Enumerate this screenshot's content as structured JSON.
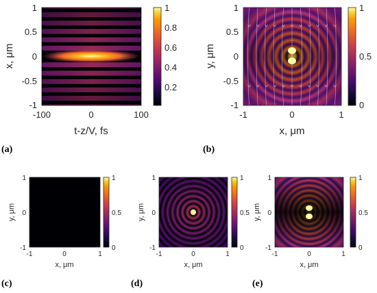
{
  "panels": {
    "a": {
      "label": "(a)",
      "x_label": "t-z/V, fs",
      "y_label": "x, μm",
      "x_ticks": [
        "-100",
        "0",
        "100"
      ],
      "y_ticks": [
        "1",
        "0.5",
        "0",
        "-0.5",
        "-1"
      ],
      "cbar_ticks": [
        "1",
        "0.8",
        "0.6",
        "0.4",
        "0.2"
      ]
    },
    "b": {
      "label": "(b)",
      "x_label": "x, μm",
      "y_label": "y, μm",
      "x_ticks": [
        "-1",
        "0",
        "1"
      ],
      "y_ticks": [
        "1",
        "0.5",
        "0",
        "-0.5",
        "-1"
      ],
      "cbar_ticks": [
        "1",
        "0.5",
        "0"
      ]
    },
    "c": {
      "label": "(c)",
      "x_label": "x, μm",
      "y_label": "y, μm",
      "x_ticks": [
        "-1",
        "0",
        "1"
      ],
      "y_ticks": [
        "1",
        "0",
        "-1"
      ],
      "cbar_ticks": [
        "1",
        "0.5",
        "0"
      ]
    },
    "d": {
      "label": "(d)",
      "x_label": "x, μm",
      "y_label": "y, μm",
      "x_ticks": [
        "-1",
        "0",
        "1"
      ],
      "y_ticks": [
        "1",
        "0",
        "-1"
      ],
      "cbar_ticks": [
        "1",
        "0.5",
        "0"
      ]
    },
    "e": {
      "label": "(e)",
      "x_label": "x, μm",
      "y_label": "y, μm",
      "x_ticks": [
        "-1",
        "0",
        "1"
      ],
      "y_ticks": [
        "1",
        "0",
        "-1"
      ],
      "cbar_ticks": [
        "1",
        "0.5",
        "0"
      ]
    }
  },
  "colormap": "inferno"
}
